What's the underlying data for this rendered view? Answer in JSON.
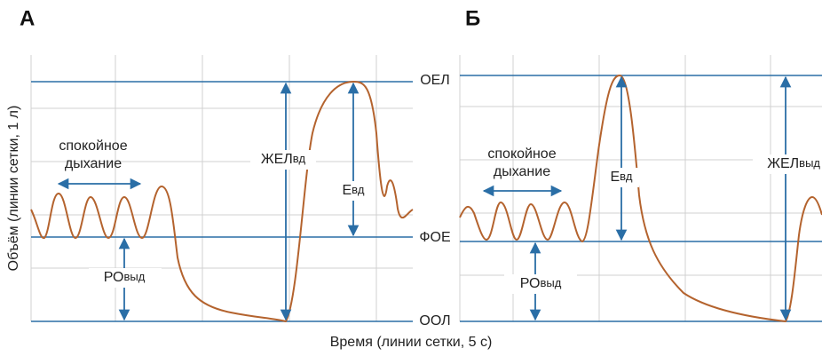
{
  "panels": [
    {
      "label": "А",
      "quiet_breathing": [
        "спокойное",
        "дыхание"
      ],
      "vc_label": {
        "main": "ЖЕЛ",
        "sub": "вд"
      },
      "ic_label": {
        "main": "Е",
        "sub": "вд"
      },
      "erv_label": {
        "main": "РО",
        "sub": "выд"
      }
    },
    {
      "label": "Б",
      "quiet_breathing": [
        "спокойное",
        "дыхание"
      ],
      "vc_label": {
        "main": "ЖЕЛ",
        "sub": "выд"
      },
      "ic_label": {
        "main": "Е",
        "sub": "вд"
      },
      "erv_label": {
        "main": "РО",
        "sub": "выд"
      }
    }
  ],
  "levels": {
    "tlc": "ОЕЛ",
    "frc": "ФОЕ",
    "rv": "ООЛ"
  },
  "y_axis_label": "Объём (линии сетки, 1 л)",
  "x_axis_label": "Время (линии сетки, 5 с)"
}
